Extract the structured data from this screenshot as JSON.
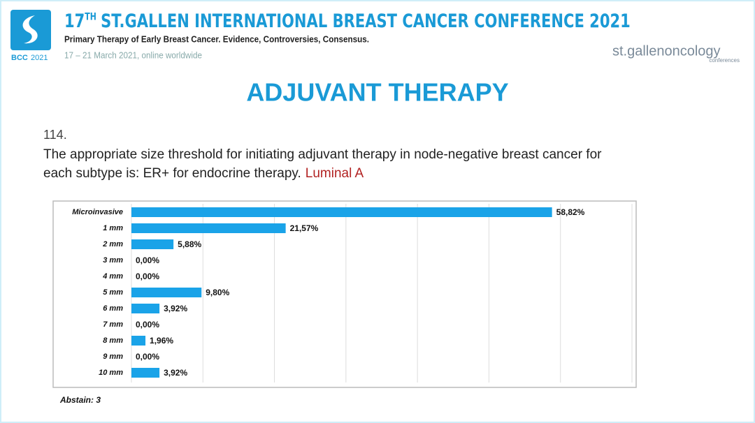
{
  "header": {
    "title_number": "17",
    "title_sup": "TH",
    "title_rest": "ST.GALLEN INTERNATIONAL BREAST CANCER CONFERENCE 2021",
    "subtitle": "Primary Therapy of Early Breast Cancer. Evidence, Controversies, Consensus.",
    "dates": "17 – 21 March 2021, online worldwide",
    "badge": "BCC",
    "badge_year": "2021",
    "logo": "st.gallenoncology",
    "logo_sub": "conferences"
  },
  "slide": {
    "title": "ADJUVANT THERAPY",
    "question_number": "114.",
    "question_line1": "The appropriate size threshold for initiating adjuvant therapy in node-negative breast cancer for",
    "question_line2": "each subtype is: ER+ for endocrine therapy.",
    "subtype": "Luminal A",
    "abstain": "Abstain: 3"
  },
  "chart_data": {
    "type": "hbar",
    "categories": [
      "Microinvasive",
      "1 mm",
      "2 mm",
      "3 mm",
      "4 mm",
      "5 mm",
      "6 mm",
      "7 mm",
      "8 mm",
      "9 mm",
      "10 mm"
    ],
    "values": [
      58.82,
      21.57,
      5.88,
      0,
      0,
      9.8,
      3.92,
      0,
      1.96,
      0,
      3.92
    ],
    "value_labels": [
      "58,82%",
      "21,57%",
      "5,88%",
      "0,00%",
      "0,00%",
      "9,80%",
      "3,92%",
      "0,00%",
      "1,96%",
      "0,00%",
      "3,92%"
    ],
    "color": "#1aa3e8",
    "xlim": [
      0,
      70
    ],
    "xticks": [
      0,
      10,
      20,
      30,
      40,
      50,
      60,
      70
    ],
    "grid": true
  }
}
